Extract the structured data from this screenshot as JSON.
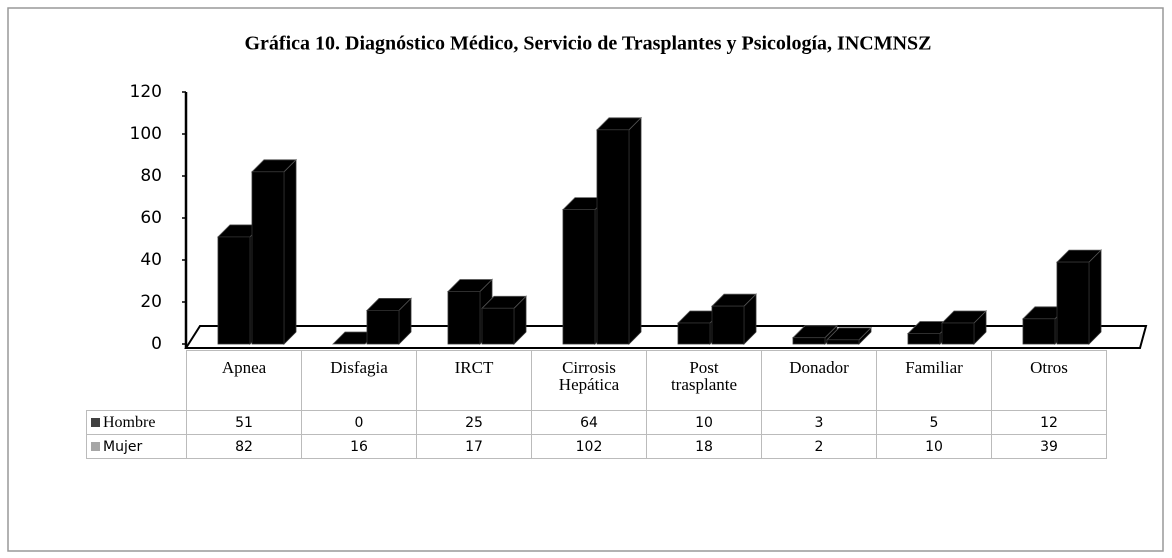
{
  "chart_data": {
    "type": "bar3d",
    "title": "Gráfica 10. Diagnóstico Médico, Servicio de Trasplantes y Psicología, INCMNSZ",
    "categories": [
      "Apnea",
      "Disfagia",
      "IRCT",
      "Cirrosis Hepática",
      "Post trasplante",
      "Donador",
      "Familiar",
      "Otros"
    ],
    "series": [
      {
        "name": "Hombre",
        "color": "#404040",
        "values": [
          51,
          0,
          25,
          64,
          10,
          3,
          5,
          12
        ]
      },
      {
        "name": "Mujer",
        "color": "#a6a6a6",
        "values": [
          82,
          16,
          17,
          102,
          18,
          2,
          10,
          39
        ]
      }
    ],
    "bar_color": "#000000",
    "ylim": [
      0,
      120
    ],
    "yticks": [
      0,
      20,
      40,
      60,
      80,
      100,
      120
    ]
  }
}
